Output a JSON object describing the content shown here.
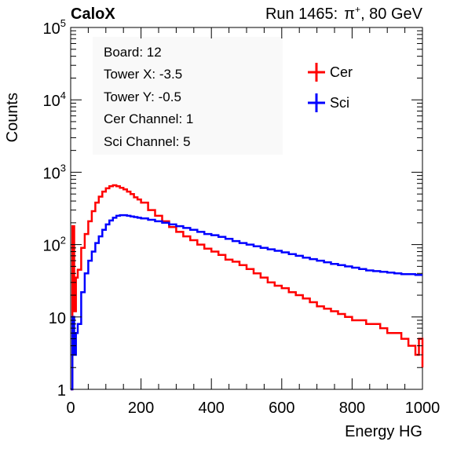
{
  "header": {
    "left": "CaloX",
    "right_run": "Run 1465:",
    "right_particle": "π",
    "right_charge": "+",
    "right_energy": ", 80 GeV"
  },
  "info_box": {
    "lines": [
      "Board: 12",
      "Tower X: -3.5",
      "Tower Y: -0.5",
      "Cer Channel: 1",
      "Sci Channel: 5"
    ]
  },
  "colors": {
    "cer": "#ff0000",
    "sci": "#0000ff",
    "info_bg": "#f9f9f9"
  },
  "chart_data": {
    "type": "line",
    "xlabel": "Energy HG",
    "ylabel": "Counts",
    "xlim": [
      0,
      1000
    ],
    "ylim": [
      1,
      100000
    ],
    "yscale": "log",
    "x_ticks": [
      "0",
      "200",
      "400",
      "600",
      "800",
      "1000"
    ],
    "y_ticks": [
      {
        "base": "1",
        "exp": ""
      },
      {
        "base": "10",
        "exp": ""
      },
      {
        "base": "10",
        "exp": "2"
      },
      {
        "base": "10",
        "exp": "3"
      },
      {
        "base": "10",
        "exp": "4"
      },
      {
        "base": "10",
        "exp": "5"
      }
    ],
    "legend_position": "top-right",
    "series": [
      {
        "name": "Cer",
        "color": "#ff0000",
        "x": [
          0,
          5,
          10,
          15,
          20,
          30,
          40,
          50,
          60,
          70,
          80,
          90,
          100,
          110,
          120,
          130,
          140,
          150,
          160,
          170,
          180,
          190,
          200,
          220,
          240,
          260,
          280,
          300,
          320,
          340,
          360,
          380,
          400,
          420,
          440,
          460,
          480,
          500,
          520,
          540,
          560,
          580,
          600,
          620,
          640,
          660,
          680,
          700,
          720,
          740,
          760,
          780,
          800,
          820,
          840,
          860,
          880,
          900,
          920,
          940,
          960,
          980,
          990,
          1000
        ],
        "y": [
          1,
          180,
          12,
          35,
          45,
          90,
          140,
          210,
          290,
          380,
          460,
          540,
          600,
          640,
          660,
          640,
          610,
          580,
          540,
          500,
          450,
          420,
          380,
          300,
          250,
          210,
          175,
          150,
          130,
          115,
          100,
          88,
          80,
          72,
          62,
          58,
          52,
          46,
          40,
          35,
          30,
          27,
          25,
          22,
          20,
          18,
          16,
          14,
          13,
          12,
          11,
          10,
          9,
          9,
          8,
          8,
          7,
          6,
          6,
          5,
          4,
          3,
          5,
          2
        ]
      },
      {
        "name": "Sci",
        "color": "#0000ff",
        "x": [
          0,
          5,
          10,
          15,
          20,
          30,
          40,
          50,
          60,
          70,
          80,
          90,
          100,
          110,
          120,
          130,
          140,
          150,
          160,
          170,
          180,
          190,
          200,
          220,
          240,
          260,
          280,
          300,
          320,
          340,
          360,
          380,
          400,
          420,
          440,
          460,
          480,
          500,
          520,
          540,
          560,
          580,
          600,
          620,
          640,
          660,
          680,
          700,
          720,
          740,
          760,
          780,
          800,
          820,
          840,
          860,
          880,
          900,
          920,
          940,
          960,
          980,
          1000
        ],
        "y": [
          1,
          10,
          3,
          6,
          8,
          22,
          40,
          60,
          80,
          105,
          130,
          160,
          190,
          215,
          235,
          250,
          255,
          255,
          250,
          245,
          240,
          235,
          230,
          220,
          210,
          200,
          190,
          180,
          170,
          160,
          150,
          140,
          135,
          128,
          120,
          112,
          105,
          100,
          95,
          90,
          86,
          82,
          78,
          74,
          70,
          66,
          63,
          60,
          57,
          54,
          52,
          50,
          48,
          46,
          44,
          43,
          42,
          41,
          40,
          39,
          39,
          38,
          38
        ]
      }
    ]
  }
}
